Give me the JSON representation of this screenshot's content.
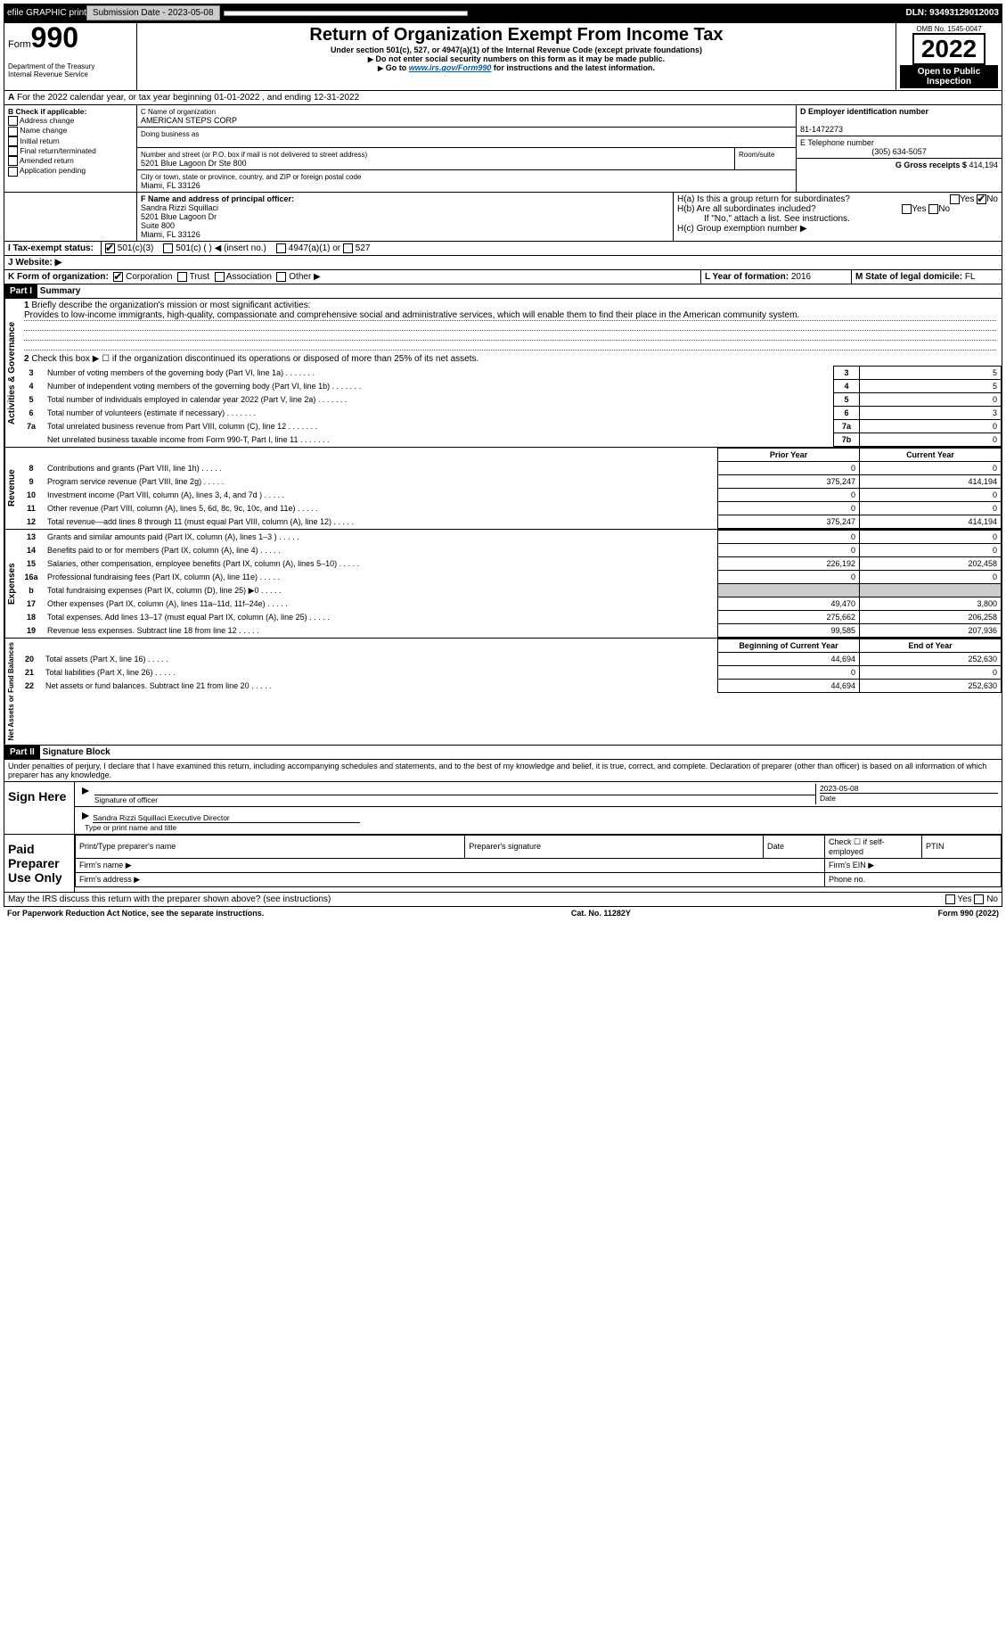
{
  "topbar": {
    "efile": "efile GRAPHIC print",
    "submission": "Submission Date - 2023-05-08",
    "dln": "DLN: 93493129012003"
  },
  "header": {
    "form_word": "Form",
    "form_number": "990",
    "title": "Return of Organization Exempt From Income Tax",
    "subtitle": "Under section 501(c), 527, or 4947(a)(1) of the Internal Revenue Code (except private foundations)",
    "note1": "Do not enter social security numbers on this form as it may be made public.",
    "note2": "Go to ",
    "link": "www.irs.gov/Form990",
    "note2_end": " for instructions and the latest information.",
    "dept": "Department of the Treasury",
    "irs": "Internal Revenue Service",
    "omb": "OMB No. 1545-0047",
    "year": "2022",
    "inspection": "Open to Public Inspection"
  },
  "lineA": "For the 2022 calendar year, or tax year beginning 01-01-2022    , and ending 12-31-2022",
  "checkB": {
    "title": "B Check if applicable:",
    "addr": "Address change",
    "name": "Name change",
    "initial": "Initial return",
    "final": "Final return/terminated",
    "amended": "Amended return",
    "app": "Application pending"
  },
  "orgC": {
    "label": "C Name of organization",
    "name": "AMERICAN STEPS CORP",
    "dba": "Doing business as",
    "addr_label": "Number and street (or P.O. box if mail is not delivered to street address)",
    "room": "Room/suite",
    "addr": "5201 Blue Lagoon Dr Ste 800",
    "city_label": "City or town, state or province, country, and ZIP or foreign postal code",
    "city": "Miami, FL  33126"
  },
  "boxD": {
    "label": "D Employer identification number",
    "val": "81-1472273"
  },
  "boxE": {
    "label": "E Telephone number",
    "val": "(305) 634-5057"
  },
  "boxG": {
    "label": "G Gross receipts $",
    "val": "414,194"
  },
  "boxF": {
    "label": "F  Name and address of principal officer:",
    "l1": "Sandra Rizzi Squillaci",
    "l2": "5201 Blue Lagoon Dr",
    "l3": "Suite 800",
    "l4": "Miami, FL  33126"
  },
  "boxH": {
    "ha": "H(a)  Is this a group return for subordinates?",
    "hb": "H(b)  Are all subordinates included?",
    "hb_note": "If \"No,\" attach a list. See instructions.",
    "hc": "H(c)  Group exemption number ▶",
    "yes": "Yes",
    "no": "No"
  },
  "boxI": {
    "label": "I   Tax-exempt status:",
    "o1": "501(c)(3)",
    "o2": "501(c) (   ) ◀ (insert no.)",
    "o3": "4947(a)(1) or",
    "o4": "527"
  },
  "boxJ": {
    "label": "J   Website: ▶"
  },
  "boxK": {
    "label": "K Form of organization:",
    "corp": "Corporation",
    "trust": "Trust",
    "assoc": "Association",
    "other": "Other ▶"
  },
  "boxL": {
    "label": "L Year of formation:",
    "val": "2016"
  },
  "boxM": {
    "label": "M State of legal domicile:",
    "val": "FL"
  },
  "partI": {
    "title": "Part I",
    "name": "Summary",
    "q1": "Briefly describe the organization's mission or most significant activities:",
    "mission": "Provides to low-income immigrants, high-quality, compassionate and comprehensive social and administrative services, which will enable them to find their place in the American community system.",
    "q2": "Check this box ▶ ☐  if the organization discontinued its operations or disposed of more than 25% of its net assets.",
    "rows_gov": [
      {
        "n": "3",
        "t": "Number of voting members of the governing body (Part VI, line 1a)",
        "box": "3",
        "v": "5"
      },
      {
        "n": "4",
        "t": "Number of independent voting members of the governing body (Part VI, line 1b)",
        "box": "4",
        "v": "5"
      },
      {
        "n": "5",
        "t": "Total number of individuals employed in calendar year 2022 (Part V, line 2a)",
        "box": "5",
        "v": "0"
      },
      {
        "n": "6",
        "t": "Total number of volunteers (estimate if necessary)",
        "box": "6",
        "v": "3"
      },
      {
        "n": "7a",
        "t": "Total unrelated business revenue from Part VIII, column (C), line 12",
        "box": "7a",
        "v": "0"
      },
      {
        "n": "",
        "t": "Net unrelated business taxable income from Form 990-T, Part I, line 11",
        "box": "7b",
        "v": "0"
      }
    ],
    "col_prior": "Prior Year",
    "col_curr": "Current Year",
    "rows_rev": [
      {
        "n": "8",
        "t": "Contributions and grants (Part VIII, line 1h)",
        "p": "0",
        "c": "0"
      },
      {
        "n": "9",
        "t": "Program service revenue (Part VIII, line 2g)",
        "p": "375,247",
        "c": "414,194"
      },
      {
        "n": "10",
        "t": "Investment income (Part VIII, column (A), lines 3, 4, and 7d )",
        "p": "0",
        "c": "0"
      },
      {
        "n": "11",
        "t": "Other revenue (Part VIII, column (A), lines 5, 6d, 8c, 9c, 10c, and 11e)",
        "p": "0",
        "c": "0"
      },
      {
        "n": "12",
        "t": "Total revenue—add lines 8 through 11 (must equal Part VIII, column (A), line 12)",
        "p": "375,247",
        "c": "414,194"
      }
    ],
    "rows_exp": [
      {
        "n": "13",
        "t": "Grants and similar amounts paid (Part IX, column (A), lines 1–3 )",
        "p": "0",
        "c": "0"
      },
      {
        "n": "14",
        "t": "Benefits paid to or for members (Part IX, column (A), line 4)",
        "p": "0",
        "c": "0"
      },
      {
        "n": "15",
        "t": "Salaries, other compensation, employee benefits (Part IX, column (A), lines 5–10)",
        "p": "226,192",
        "c": "202,458"
      },
      {
        "n": "16a",
        "t": "Professional fundraising fees (Part IX, column (A), line 11e)",
        "p": "0",
        "c": "0"
      },
      {
        "n": "b",
        "t": "Total fundraising expenses (Part IX, column (D), line 25) ▶0",
        "p": "",
        "c": "",
        "shade": true
      },
      {
        "n": "17",
        "t": "Other expenses (Part IX, column (A), lines 11a–11d, 11f–24e)",
        "p": "49,470",
        "c": "3,800"
      },
      {
        "n": "18",
        "t": "Total expenses. Add lines 13–17 (must equal Part IX, column (A), line 25)",
        "p": "275,662",
        "c": "206,258"
      },
      {
        "n": "19",
        "t": "Revenue less expenses. Subtract line 18 from line 12",
        "p": "99,585",
        "c": "207,936"
      }
    ],
    "col_boy": "Beginning of Current Year",
    "col_eoy": "End of Year",
    "rows_net": [
      {
        "n": "20",
        "t": "Total assets (Part X, line 16)",
        "p": "44,694",
        "c": "252,630"
      },
      {
        "n": "21",
        "t": "Total liabilities (Part X, line 26)",
        "p": "0",
        "c": "0"
      },
      {
        "n": "22",
        "t": "Net assets or fund balances. Subtract line 21 from line 20",
        "p": "44,694",
        "c": "252,630"
      }
    ],
    "vert_gov": "Activities & Governance",
    "vert_rev": "Revenue",
    "vert_exp": "Expenses",
    "vert_net": "Net Assets or Fund Balances"
  },
  "partII": {
    "title": "Part II",
    "name": "Signature Block",
    "penalty": "Under penalties of perjury, I declare that I have examined this return, including accompanying schedules and statements, and to the best of my knowledge and belief, it is true, correct, and complete. Declaration of preparer (other than officer) is based on all information of which preparer has any knowledge.",
    "sign_here": "Sign Here",
    "sig_officer": "Signature of officer",
    "date_lbl": "Date",
    "date": "2023-05-08",
    "name_title": "Sandra Rizzi Squillaci  Executive Director",
    "type_name": "Type or print name and title",
    "paid": "Paid Preparer Use Only",
    "prep_name": "Print/Type preparer's name",
    "prep_sig": "Preparer's signature",
    "check_self": "Check ☐ if self-employed",
    "ptin": "PTIN",
    "firm_name": "Firm's name    ▶",
    "firm_ein": "Firm's EIN ▶",
    "firm_addr": "Firm's address ▶",
    "phone": "Phone no.",
    "may_irs": "May the IRS discuss this return with the preparer shown above? (see instructions)"
  },
  "footer": {
    "pra": "For Paperwork Reduction Act Notice, see the separate instructions.",
    "cat": "Cat. No. 11282Y",
    "form": "Form 990 (2022)"
  }
}
